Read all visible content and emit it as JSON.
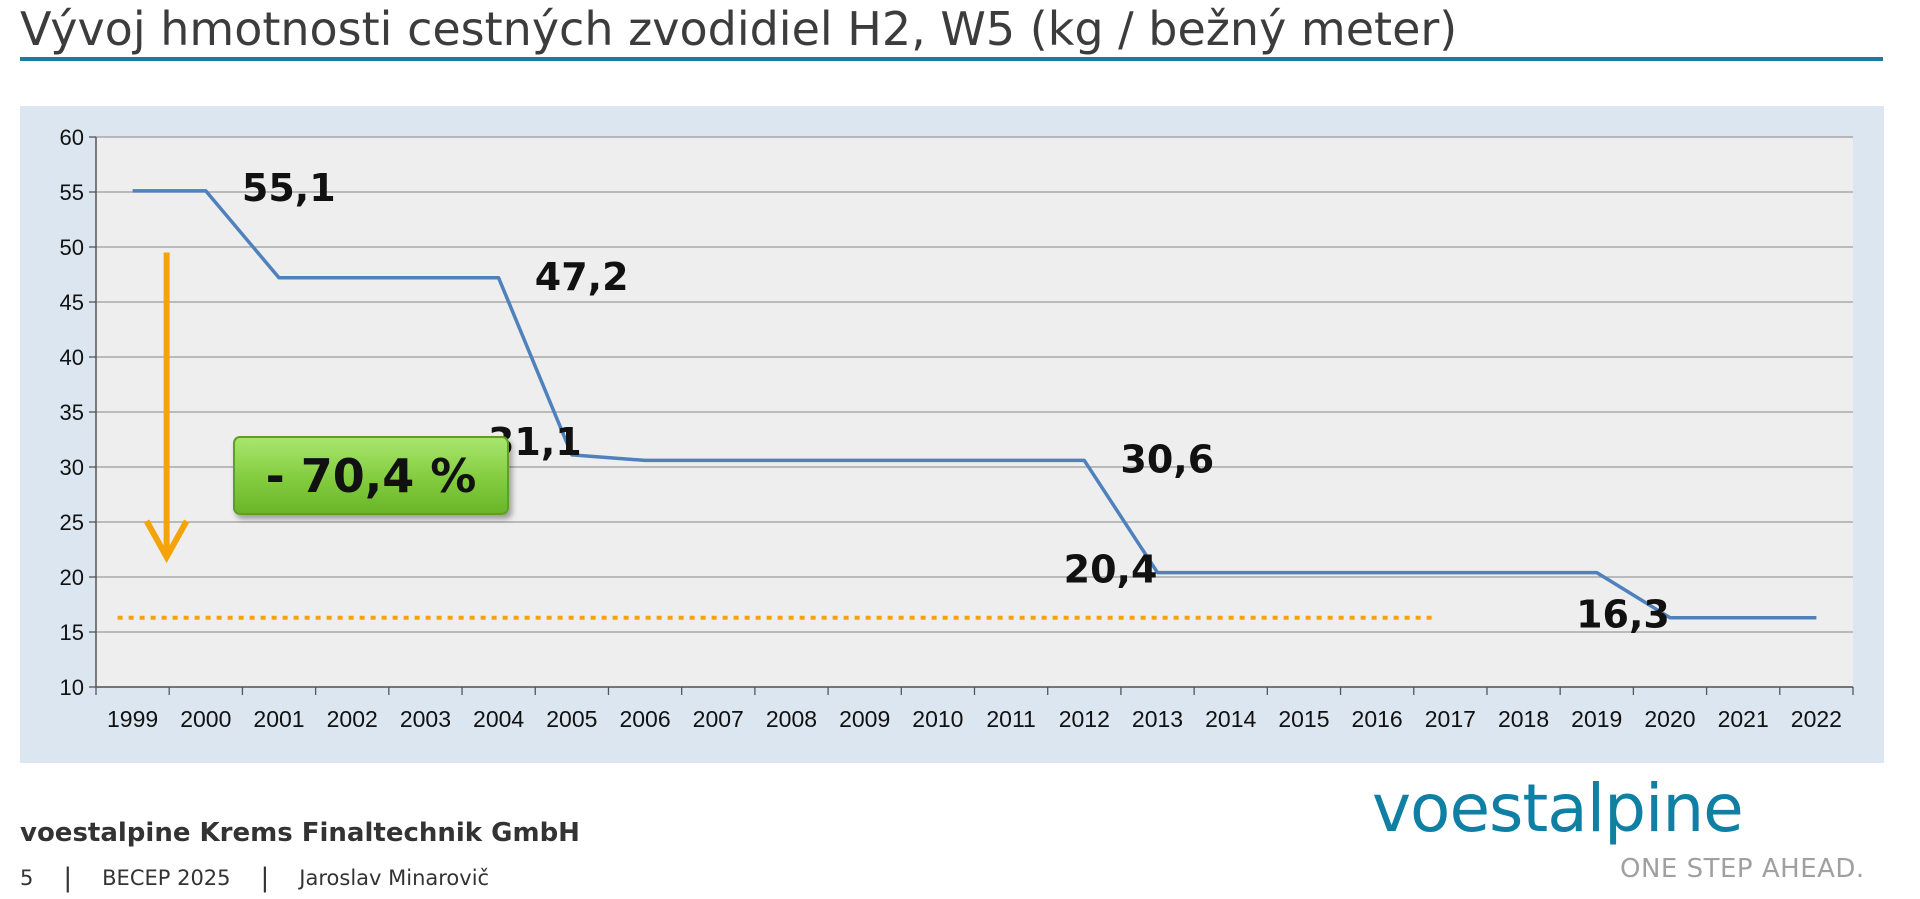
{
  "title": "Vývoj hmotnosti cestných zvodidiel H2, W5 (kg / bežný meter)",
  "badge": "- 70,4 %",
  "footer": {
    "company": "voestalpine Krems Finaltechnik GmbH",
    "page_number": "5",
    "event": "BECEP 2025",
    "author": "Jaroslav Minarovič"
  },
  "logo": {
    "name": "voestalpine",
    "tagline": "ONE STEP AHEAD."
  },
  "colors": {
    "line": "#4f81bd",
    "arrow": "#f5a30a",
    "reference_line": "#f5a30a",
    "badge": "#82cc3e",
    "title_rule": "#1f78a6",
    "panel": "#dce6f1",
    "plot": "#eeeeee"
  },
  "chart_data": {
    "type": "line",
    "title": "",
    "xlabel": "",
    "ylabel": "",
    "categories": [
      "1999",
      "2000",
      "2001",
      "2002",
      "2003",
      "2004",
      "2005",
      "2006",
      "2007",
      "2008",
      "2009",
      "2010",
      "2011",
      "2012",
      "2013",
      "2014",
      "2015",
      "2016",
      "2017",
      "2018",
      "2019",
      "2020",
      "2021",
      "2022"
    ],
    "values": [
      55.1,
      55.1,
      47.2,
      47.2,
      47.2,
      47.2,
      31.1,
      30.6,
      30.6,
      30.6,
      30.6,
      30.6,
      30.6,
      30.6,
      20.4,
      20.4,
      20.4,
      20.4,
      20.4,
      20.4,
      20.4,
      16.3,
      16.3,
      16.3
    ],
    "ylim": [
      10,
      60
    ],
    "yticks": [
      10,
      15,
      20,
      25,
      30,
      35,
      40,
      45,
      50,
      55,
      60
    ],
    "grid": true,
    "legend": "none",
    "data_labels": [
      {
        "text": "55,1",
        "category": "2000",
        "value": 55.1
      },
      {
        "text": "47,2",
        "category": "2004",
        "value": 47.2
      },
      {
        "text": "31,1",
        "category": "2005",
        "value": 31.1
      },
      {
        "text": "30,6",
        "category": "2012",
        "value": 30.6
      },
      {
        "text": "20,4",
        "category": "2013",
        "value": 20.4
      },
      {
        "text": "16,3",
        "category": "2020",
        "value": 16.3
      }
    ],
    "reference_line": {
      "value": 16.3,
      "from": "1999",
      "to": "2017",
      "style": "dotted"
    },
    "arrow": {
      "category": "1999",
      "from": 49.5,
      "to": 22
    }
  }
}
